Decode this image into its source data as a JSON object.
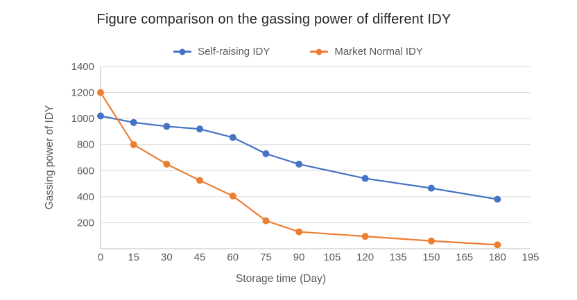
{
  "chart_data": {
    "type": "line",
    "title": "Figure comparison on the gassing power of different IDY",
    "xlabel": "Storage time (Day)",
    "ylabel": "Gassing power of IDY",
    "xlim": [
      0,
      195
    ],
    "ylim": [
      0,
      1400
    ],
    "xticks": [
      0,
      15,
      30,
      45,
      60,
      75,
      90,
      105,
      120,
      135,
      150,
      165,
      180,
      195
    ],
    "yticks": [
      200,
      400,
      600,
      800,
      1000,
      1200,
      1400
    ],
    "grid": "horizontal",
    "legend_position": "top",
    "x": [
      0,
      15,
      30,
      45,
      60,
      75,
      90,
      120,
      150,
      180
    ],
    "series": [
      {
        "name": "Self-raising IDY",
        "color": "#4472C4",
        "values": [
          1020,
          970,
          940,
          920,
          855,
          730,
          650,
          540,
          465,
          380
        ]
      },
      {
        "name": "Market Normal IDY",
        "color": "#ED7D31",
        "values": [
          1200,
          800,
          650,
          525,
          405,
          215,
          130,
          95,
          60,
          30
        ]
      }
    ],
    "colors": {
      "gridline": "#D9D9D9",
      "axis_line": "#BFBFBF",
      "tick_text": "#595959",
      "title_text": "#262626"
    }
  }
}
